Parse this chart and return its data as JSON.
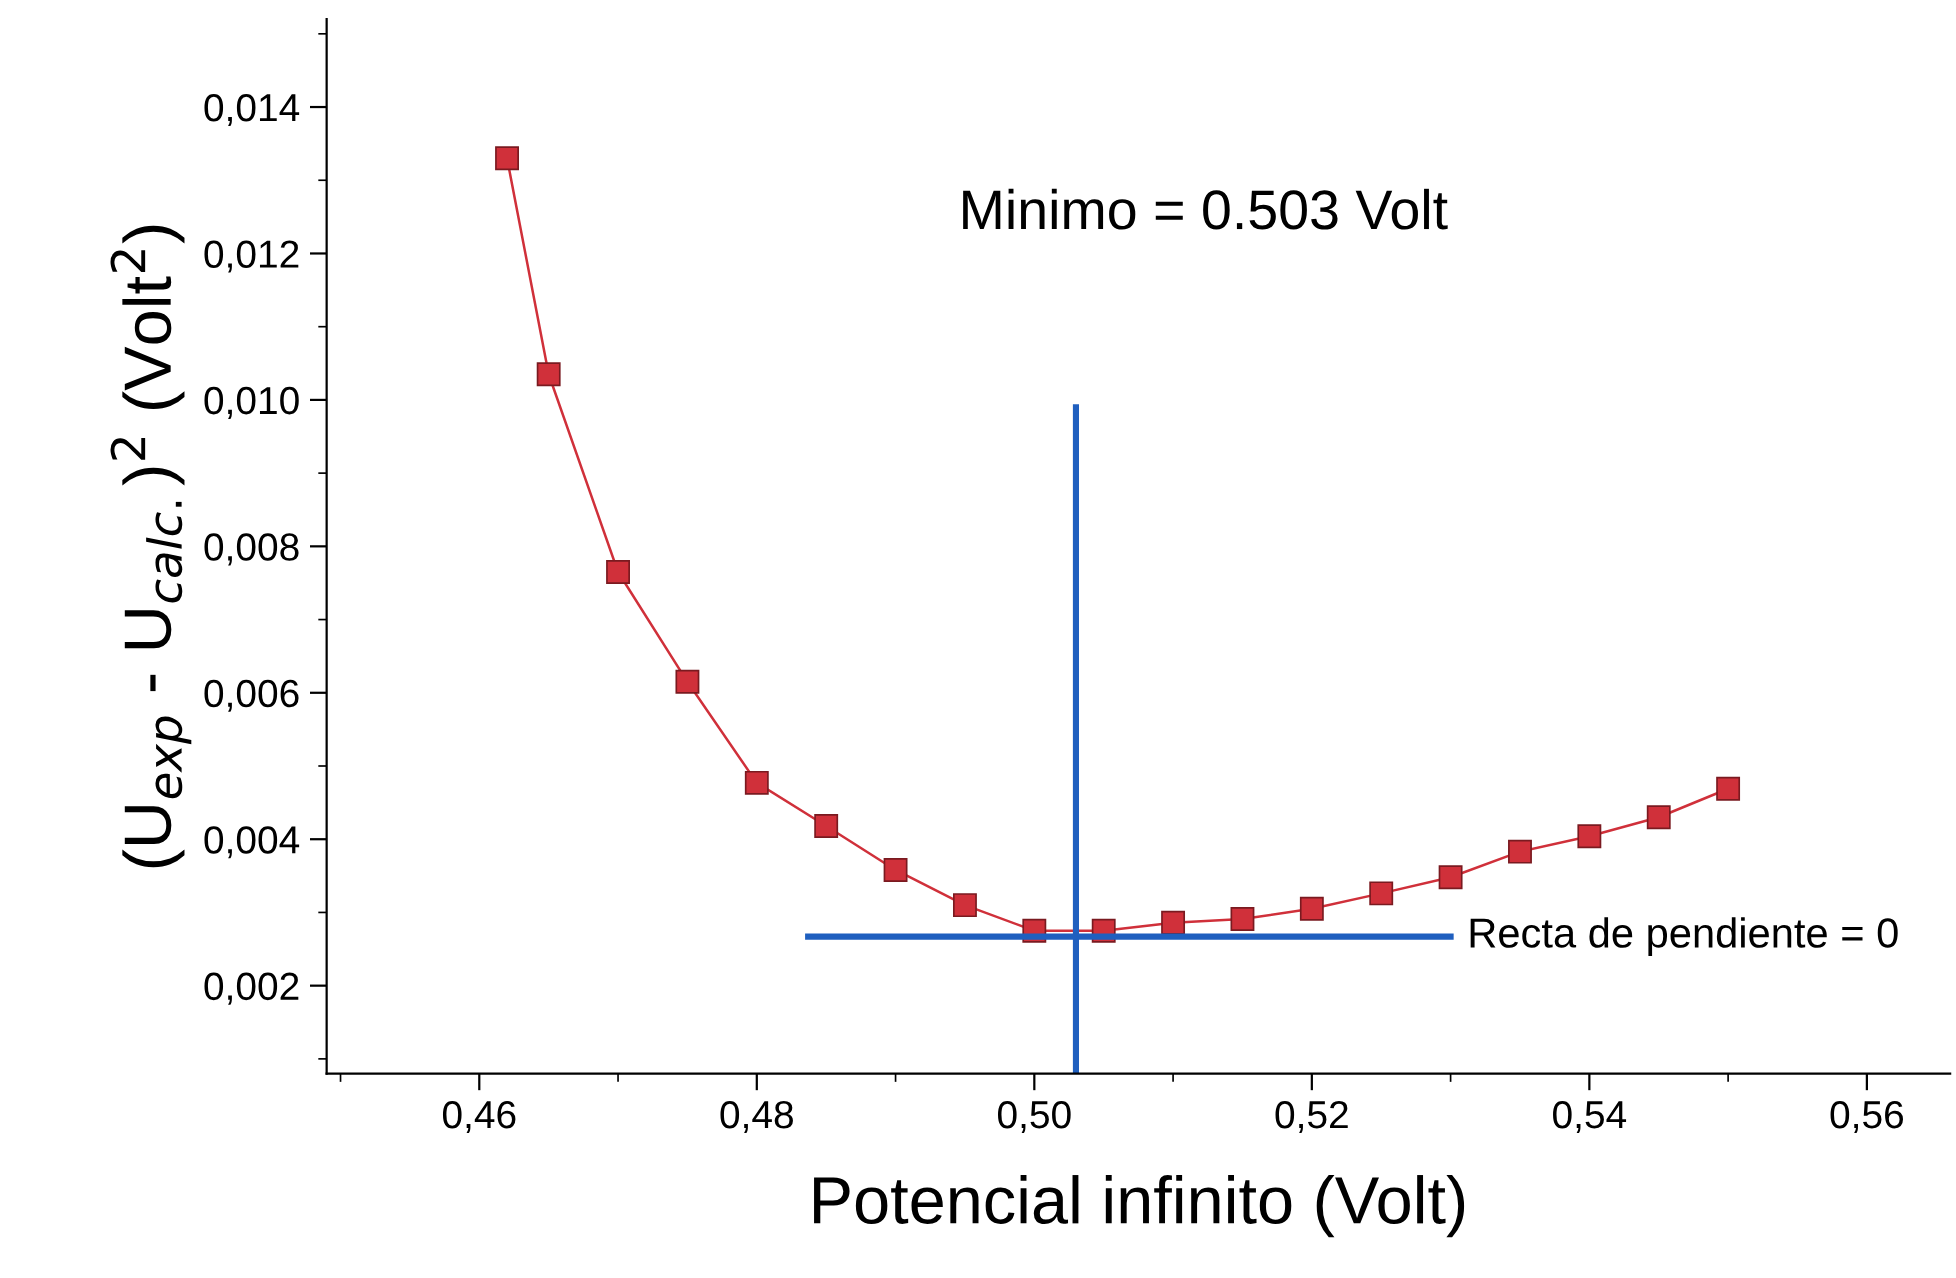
{
  "chart_data": {
    "type": "line",
    "xlabel": "Potencial infinito (Volt)",
    "ylabel": "(U$_{exp}$ - U$_{calc.}$)$^{2}$ (Volt$^{2}$)",
    "xlim": [
      0.449,
      0.566
    ],
    "ylim": [
      0.0008,
      0.0152
    ],
    "xticks": [
      {
        "value": 0.46,
        "label": "0,46"
      },
      {
        "value": 0.48,
        "label": "0,48"
      },
      {
        "value": 0.5,
        "label": "0,50"
      },
      {
        "value": 0.52,
        "label": "0,52"
      },
      {
        "value": 0.54,
        "label": "0,54"
      },
      {
        "value": 0.56,
        "label": "0,56"
      }
    ],
    "yticks": [
      {
        "value": 0.002,
        "label": "0,002"
      },
      {
        "value": 0.004,
        "label": "0,004"
      },
      {
        "value": 0.006,
        "label": "0,006"
      },
      {
        "value": 0.008,
        "label": "0,008"
      },
      {
        "value": 0.01,
        "label": "0,010"
      },
      {
        "value": 0.012,
        "label": "0,012"
      },
      {
        "value": 0.014,
        "label": "0,014"
      }
    ],
    "grid": false,
    "series": [
      {
        "color": "#d0303a",
        "marker": "square",
        "line_style": "solid",
        "x": [
          0.462,
          0.465,
          0.47,
          0.475,
          0.48,
          0.485,
          0.49,
          0.495,
          0.5,
          0.505,
          0.51,
          0.515,
          0.52,
          0.525,
          0.53,
          0.535,
          0.54,
          0.545,
          0.55
        ],
        "values": [
          0.0133,
          0.01035,
          0.00765,
          0.00615,
          0.00477,
          0.00418,
          0.00358,
          0.0031,
          0.00275,
          0.00275,
          0.00286,
          0.00291,
          0.00305,
          0.00326,
          0.00348,
          0.00383,
          0.00404,
          0.0043,
          0.00469
        ]
      },
      {
        "color": "#1f5fbf",
        "marker": "none",
        "line_style": "solid",
        "x": [
          0.503,
          0.503
        ],
        "values": [
          0.0099,
          0.0008
        ]
      },
      {
        "color": "#1f5fbf",
        "marker": "none",
        "line_style": "solid",
        "x": [
          0.4837,
          0.53
        ],
        "values": [
          0.00267,
          0.00267
        ]
      }
    ],
    "annotations": [
      "Minimo = 0.503 Volt",
      {
        "text": "Recta de pendiente = 0",
        "x": 0.53,
        "y": 0.00267
      }
    ]
  }
}
